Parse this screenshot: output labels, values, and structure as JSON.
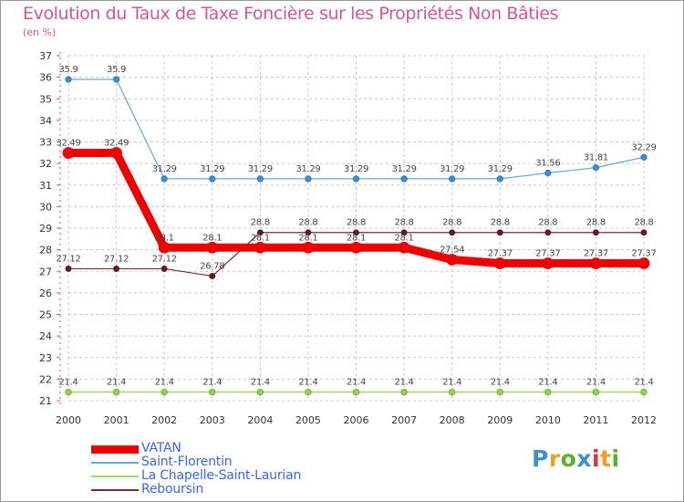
{
  "title": "Evolution du Taux de Taxe Foncière sur les Propriétés Non Bâties",
  "unit_label": "(en %)",
  "logo_text": "Proxiti",
  "chart_data": {
    "type": "line",
    "title": "Evolution du Taux de Taxe Foncière sur les Propriétés Non Bâties",
    "ylabel": "(en %)",
    "xlabel": "",
    "ylim": [
      21,
      37
    ],
    "grid": true,
    "categories": [
      "2000",
      "2001",
      "2002",
      "2003",
      "2004",
      "2005",
      "2006",
      "2007",
      "2008",
      "2009",
      "2010",
      "2011",
      "2012"
    ],
    "y_ticks": [
      21,
      22,
      23,
      24,
      25,
      26,
      27,
      28,
      29,
      30,
      31,
      32,
      33,
      34,
      35,
      36,
      37
    ],
    "legend_position": "bottom-left",
    "series": [
      {
        "name": "VATAN",
        "color": "#ee0000",
        "values": [
          32.49,
          32.49,
          28.1,
          28.1,
          28.1,
          28.1,
          28.1,
          28.1,
          27.54,
          27.37,
          27.37,
          27.37,
          27.37
        ],
        "labels": [
          "32.49",
          "32.49",
          "28.1",
          "28.1",
          "28.1",
          "28.1",
          "28.1",
          "28.1",
          "27.54",
          "27.37",
          "27.37",
          "27.37",
          "27.37"
        ]
      },
      {
        "name": "Saint-Florentin",
        "color": "#6aa6d8",
        "values": [
          35.9,
          35.9,
          31.29,
          31.29,
          31.29,
          31.29,
          31.29,
          31.29,
          31.29,
          31.29,
          31.56,
          31.81,
          32.29
        ],
        "labels": [
          "35.9",
          "35.9",
          "31.29",
          "31.29",
          "31.29",
          "31.29",
          "31.29",
          "31.29",
          "31.29",
          "31.29",
          "31.56",
          "31.81",
          "32.29"
        ]
      },
      {
        "name": "La Chapelle-Saint-Laurian",
        "color": "#99dd66",
        "values": [
          21.4,
          21.4,
          21.4,
          21.4,
          21.4,
          21.4,
          21.4,
          21.4,
          21.4,
          21.4,
          21.4,
          21.4,
          21.4
        ],
        "labels": [
          "21.4",
          "21.4",
          "21.4",
          "21.4",
          "21.4",
          "21.4",
          "21.4",
          "21.4",
          "21.4",
          "21.4",
          "21.4",
          "21.4",
          "21.4"
        ]
      },
      {
        "name": "Reboursin",
        "color": "#7a2a2a",
        "values": [
          27.12,
          27.12,
          27.12,
          26.78,
          28.8,
          28.8,
          28.8,
          28.8,
          28.8,
          28.8,
          28.8,
          28.8,
          28.8
        ],
        "labels": [
          "27.12",
          "27.12",
          "27.12",
          "26.78",
          "28.8",
          "28.8",
          "28.8",
          "28.8",
          "28.8",
          "28.8",
          "28.8",
          "28.8",
          "28.8"
        ]
      }
    ]
  }
}
